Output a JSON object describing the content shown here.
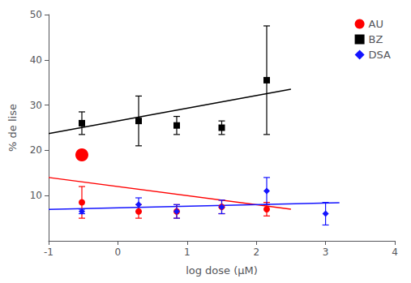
{
  "chart_data": {
    "type": "scatter",
    "xlabel": "log dose (μM)",
    "ylabel": "% de lise",
    "xlim": [
      -1,
      4
    ],
    "ylim": [
      0,
      50
    ],
    "xticks": [
      -1,
      0,
      1,
      2,
      3,
      4
    ],
    "yticks": [
      10,
      20,
      30,
      40,
      50
    ],
    "grid": false,
    "legend": "upper right",
    "series": [
      {
        "type": "line",
        "color": "#FF0000",
        "x": [
          -1.0,
          2.5
        ],
        "values": [
          14.0,
          7.0
        ]
      },
      {
        "type": "scatter",
        "marker": "circle",
        "color": "#FF0000",
        "x": [
          -0.52,
          0.3,
          0.85,
          1.5,
          2.15
        ],
        "values": [
          8.5,
          6.5,
          6.5,
          7.5,
          7.0
        ],
        "errors": [
          3.5,
          1.5,
          1.5,
          1.5,
          1.5
        ]
      },
      {
        "name": "AU",
        "type": "scatter",
        "marker": "circle",
        "color": "#FF0000",
        "x": [
          -0.52
        ],
        "values": [
          19.0
        ]
      },
      {
        "type": "line",
        "color": "#000000",
        "x": [
          -1.0,
          2.5
        ],
        "values": [
          23.7,
          33.5
        ]
      },
      {
        "name": "BZ",
        "type": "scatter",
        "marker": "square",
        "color": "#000000",
        "x": [
          -0.52,
          0.3,
          0.85,
          1.5,
          2.15
        ],
        "values": [
          26.0,
          26.5,
          25.5,
          25.0,
          35.5
        ],
        "errors": [
          2.5,
          5.5,
          2.0,
          1.5,
          12.0
        ]
      },
      {
        "type": "line",
        "color": "#1414FF",
        "x": [
          -1.0,
          3.2
        ],
        "values": [
          6.95,
          8.42
        ]
      },
      {
        "name": "DSA",
        "type": "scatter",
        "marker": "diamond",
        "color": "#1414FF",
        "x": [
          -0.52,
          0.3,
          0.85,
          1.5,
          2.15,
          3.0
        ],
        "values": [
          6.5,
          8.0,
          6.5,
          7.5,
          11.0,
          6.0
        ],
        "errors": [
          0.5,
          1.5,
          1.5,
          1.5,
          3.0,
          2.5
        ]
      }
    ]
  }
}
